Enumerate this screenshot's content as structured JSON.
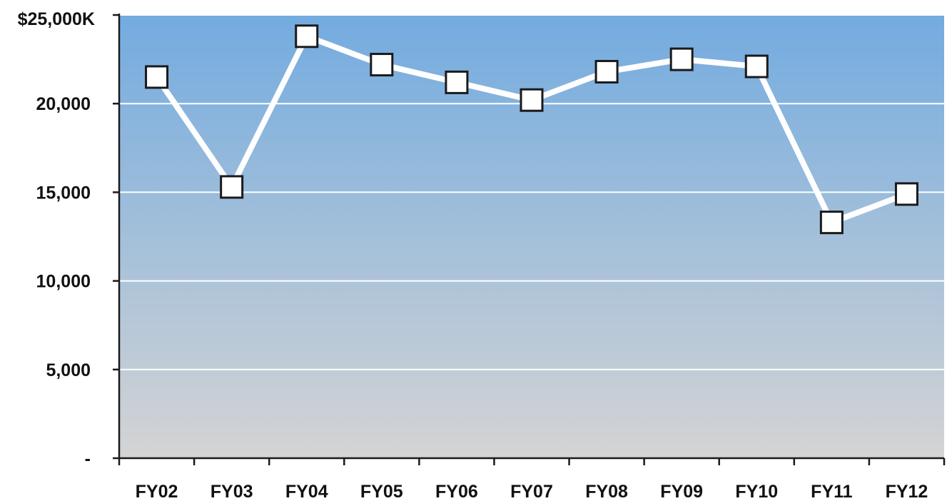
{
  "chart_data": {
    "type": "line",
    "title": "",
    "xlabel": "",
    "ylabel": "",
    "categories": [
      "FY02",
      "FY03",
      "FY04",
      "FY05",
      "FY06",
      "FY07",
      "FY08",
      "FY09",
      "FY10",
      "FY11",
      "FY12"
    ],
    "series": [
      {
        "values": [
          21500,
          15300,
          23800,
          22200,
          21200,
          20200,
          21800,
          22500,
          22100,
          13300,
          14900
        ]
      }
    ],
    "ylim": [
      0,
      25000
    ],
    "y_ticks": [
      0,
      5000,
      10000,
      15000,
      20000,
      25000
    ],
    "y_tick_labels": [
      "-",
      "5,000",
      "10,000",
      "15,000",
      "20,000",
      "$25,000K"
    ],
    "grid": true,
    "legend": "none",
    "colors": {
      "plot_top": "#73abe0",
      "plot_bottom": "#d4d4d4",
      "line": "#ffffff",
      "marker_fill": "#ffffff",
      "marker_stroke": "#1a1a1a",
      "gridline": "#ffffff",
      "axis": "#1a1a1a"
    }
  }
}
